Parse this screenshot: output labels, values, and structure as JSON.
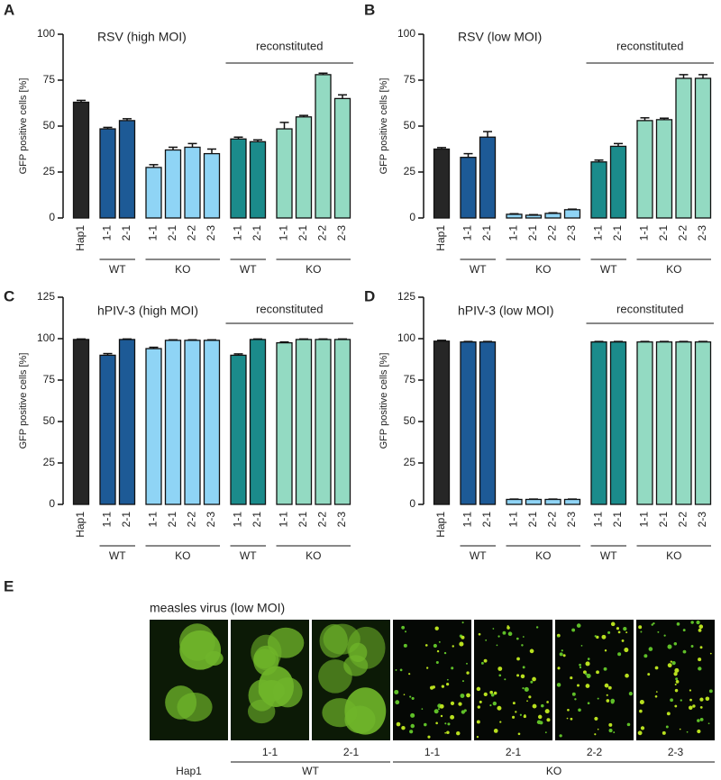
{
  "chart_data": [
    {
      "type": "bar",
      "panel_label": "A",
      "title": "RSV (high MOI)",
      "y_label": "GFP positive cells [%]",
      "bracket_label": "reconstituted",
      "categories": [
        "Hap1",
        "1-1",
        "2-1",
        "1-1",
        "2-1",
        "2-2",
        "2-3",
        "1-1",
        "2-1",
        "1-1",
        "2-1",
        "2-2",
        "2-3"
      ],
      "group_labels": [
        "WT",
        "KO",
        "WT",
        "KO"
      ],
      "values": [
        63,
        48.5,
        53,
        27.5,
        37,
        38.5,
        35,
        43,
        41.5,
        48.5,
        55,
        78,
        65
      ],
      "errors": [
        1,
        0.8,
        1,
        1.5,
        1.5,
        2,
        2.5,
        1,
        1,
        3.5,
        0.8,
        0.8,
        2
      ],
      "colors": [
        "#262626",
        "#1d5a96",
        "#1d5a96",
        "#8fd4f5",
        "#8fd4f5",
        "#8fd4f5",
        "#8fd4f5",
        "#1b8b8b",
        "#1b8b8b",
        "#93dac2",
        "#93dac2",
        "#93dac2",
        "#93dac2"
      ],
      "ylim": [
        0,
        100
      ],
      "yticks": [
        0,
        25,
        50,
        75,
        100
      ]
    },
    {
      "type": "bar",
      "panel_label": "B",
      "title": "RSV (low MOI)",
      "y_label": "GFP positive cells [%]",
      "bracket_label": "reconstituted",
      "categories": [
        "Hap1",
        "1-1",
        "2-1",
        "1-1",
        "2-1",
        "2-2",
        "2-3",
        "1-1",
        "2-1",
        "1-1",
        "2-1",
        "2-2",
        "2-3"
      ],
      "group_labels": [
        "WT",
        "KO",
        "WT",
        "KO"
      ],
      "values": [
        37.5,
        33,
        44,
        2,
        1.5,
        2.5,
        4.5,
        30.5,
        39,
        53,
        53.5,
        76,
        76
      ],
      "errors": [
        0.8,
        2,
        3,
        0.3,
        0.3,
        0.3,
        0.3,
        1,
        1.5,
        1.5,
        0.8,
        2,
        2
      ],
      "colors": [
        "#262626",
        "#1d5a96",
        "#1d5a96",
        "#8fd4f5",
        "#8fd4f5",
        "#8fd4f5",
        "#8fd4f5",
        "#1b8b8b",
        "#1b8b8b",
        "#93dac2",
        "#93dac2",
        "#93dac2",
        "#93dac2"
      ],
      "ylim": [
        0,
        100
      ],
      "yticks": [
        0,
        25,
        50,
        75,
        100
      ]
    },
    {
      "type": "bar",
      "panel_label": "C",
      "title": "hPIV-3 (high MOI)",
      "y_label": "GFP positive cells [%]",
      "bracket_label": "reconstituted",
      "categories": [
        "Hap1",
        "1-1",
        "2-1",
        "1-1",
        "2-1",
        "2-2",
        "2-3",
        "1-1",
        "2-1",
        "1-1",
        "2-1",
        "2-2",
        "2-3"
      ],
      "group_labels": [
        "WT",
        "KO",
        "WT",
        "KO"
      ],
      "values": [
        99.5,
        90,
        99.5,
        94,
        99,
        99,
        99,
        90,
        99.5,
        97.5,
        99.5,
        99.5,
        99.5
      ],
      "errors": [
        0.3,
        1,
        0.3,
        0.8,
        0.3,
        0.3,
        0.3,
        0.8,
        0.3,
        0.5,
        0.3,
        0.3,
        0.3
      ],
      "colors": [
        "#262626",
        "#1d5a96",
        "#1d5a96",
        "#8fd4f5",
        "#8fd4f5",
        "#8fd4f5",
        "#8fd4f5",
        "#1b8b8b",
        "#1b8b8b",
        "#93dac2",
        "#93dac2",
        "#93dac2",
        "#93dac2"
      ],
      "ylim": [
        0,
        125
      ],
      "yticks": [
        0,
        25,
        50,
        75,
        100,
        125
      ]
    },
    {
      "type": "bar",
      "panel_label": "D",
      "title": "hPIV-3 (low MOI)",
      "y_label": "GFP positive cells [%]",
      "bracket_label": "reconstituted",
      "categories": [
        "Hap1",
        "1-1",
        "2-1",
        "1-1",
        "2-1",
        "2-2",
        "2-3",
        "1-1",
        "2-1",
        "1-1",
        "2-1",
        "2-2",
        "2-3"
      ],
      "group_labels": [
        "WT",
        "KO",
        "WT",
        "KO"
      ],
      "values": [
        98.5,
        98,
        98,
        3,
        3,
        3,
        3,
        98,
        98,
        98,
        98,
        98,
        98
      ],
      "errors": [
        0.5,
        0.3,
        0.3,
        0.2,
        0.2,
        0.2,
        0.2,
        0.3,
        0.3,
        0.3,
        0.3,
        0.3,
        0.3
      ],
      "colors": [
        "#262626",
        "#1d5a96",
        "#1d5a96",
        "#8fd4f5",
        "#8fd4f5",
        "#8fd4f5",
        "#8fd4f5",
        "#1b8b8b",
        "#1b8b8b",
        "#93dac2",
        "#93dac2",
        "#93dac2",
        "#93dac2"
      ],
      "ylim": [
        0,
        125
      ],
      "yticks": [
        0,
        25,
        50,
        75,
        100,
        125
      ]
    }
  ],
  "panel_e": {
    "panel_label": "E",
    "title": "measles virus (low MOI)",
    "image_labels": [
      null,
      "1-1",
      "2-1",
      "1-1",
      "2-1",
      "2-2",
      "2-3"
    ],
    "group_labels": [
      "Hap1",
      "WT",
      "KO"
    ]
  }
}
